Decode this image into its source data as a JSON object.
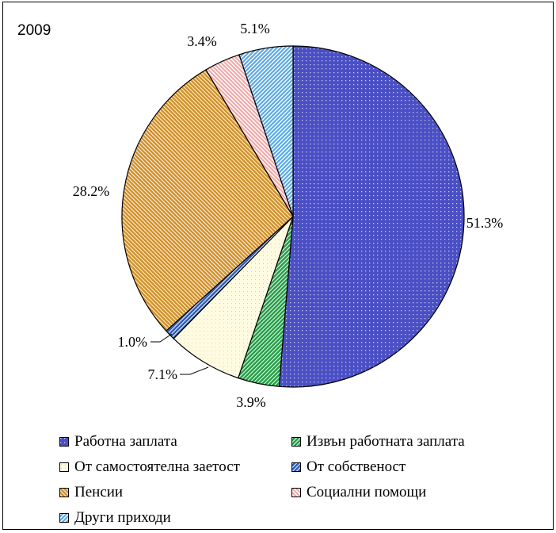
{
  "chart_data": {
    "type": "pie",
    "title": "2009",
    "slices": [
      {
        "label": "Работна заплата",
        "value": 51.3,
        "value_label": "51.3%",
        "color": "#4a4fc4",
        "pattern": "dots"
      },
      {
        "label": "Извън работната заплата",
        "value": 3.9,
        "value_label": "3.9%",
        "color": "#27a04a",
        "pattern": "diagonal-right"
      },
      {
        "label": "От самостоятелна заетост",
        "value": 7.1,
        "value_label": "7.1%",
        "color": "#fffbe0",
        "pattern": "dots-light"
      },
      {
        "label": "От собственост",
        "value": 1.0,
        "value_label": "1.0%",
        "color": "#3060b8",
        "pattern": "diagonal-right"
      },
      {
        "label": "Пенсии",
        "value": 28.2,
        "value_label": "28.2%",
        "color": "#d4922a",
        "pattern": "diagonal-left"
      },
      {
        "label": "Социални помощи",
        "value": 3.4,
        "value_label": "3.4%",
        "color": "#f3a9a9",
        "pattern": "diagonal-left-light"
      },
      {
        "label": "Други приходи",
        "value": 5.1,
        "value_label": "5.1%",
        "color": "#5aa8e8",
        "pattern": "diagonal-right-light"
      }
    ],
    "legend": {
      "placement": "bottom"
    }
  }
}
